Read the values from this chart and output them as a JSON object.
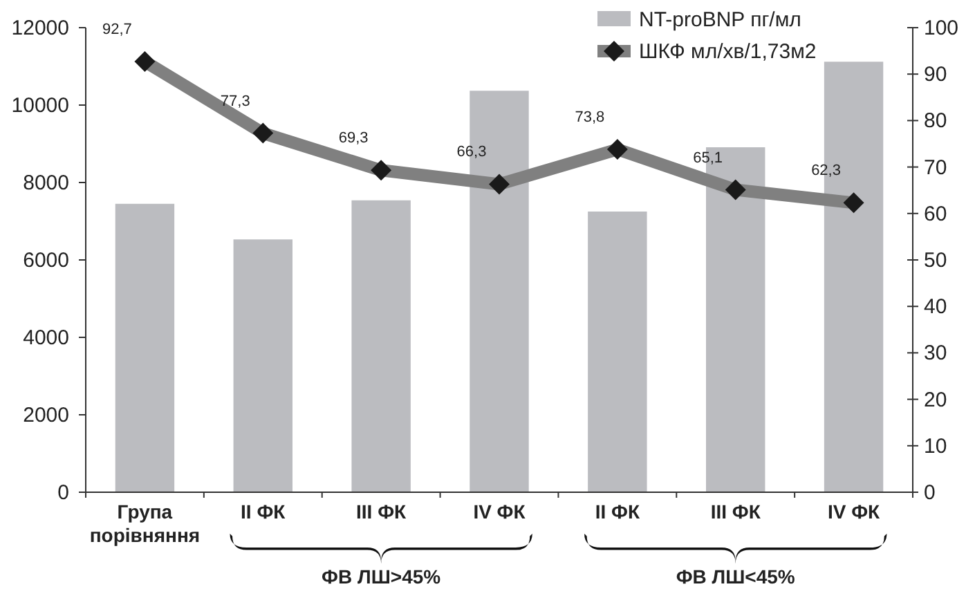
{
  "chart_data": {
    "type": "bar",
    "categories": [
      "Група порівняння",
      "II ФК",
      "III ФК",
      "IV ФК",
      "II ФК",
      "III ФК",
      "IV ФК"
    ],
    "series": [
      {
        "name": "NT-proBNP пг/мл",
        "type": "bar",
        "color": "#bbbcc0",
        "values": [
          7450,
          6530,
          7540,
          10370,
          7250,
          8910,
          11120
        ]
      },
      {
        "name": "ШКФ мл/хв/1,73м2",
        "type": "line",
        "axis": "y2",
        "color": "#808080",
        "marker": "diamond",
        "values": [
          92.7,
          77.3,
          69.3,
          66.3,
          73.8,
          65.1,
          62.3
        ],
        "value_labels": [
          "92,7",
          "77,3",
          "69,3",
          "66,3",
          "73,8",
          "65,1",
          "62,3"
        ]
      }
    ],
    "ylim": [
      0,
      12000
    ],
    "yticks": [
      0,
      2000,
      4000,
      6000,
      8000,
      10000,
      12000
    ],
    "y2lim": [
      0,
      100
    ],
    "y2ticks": [
      0,
      10,
      20,
      30,
      40,
      50,
      60,
      70,
      80,
      90,
      100
    ],
    "annotations": [
      "ФВ ЛШ>45%",
      "ФВ ЛШ<45%"
    ],
    "grid": false,
    "legend": "top right"
  }
}
